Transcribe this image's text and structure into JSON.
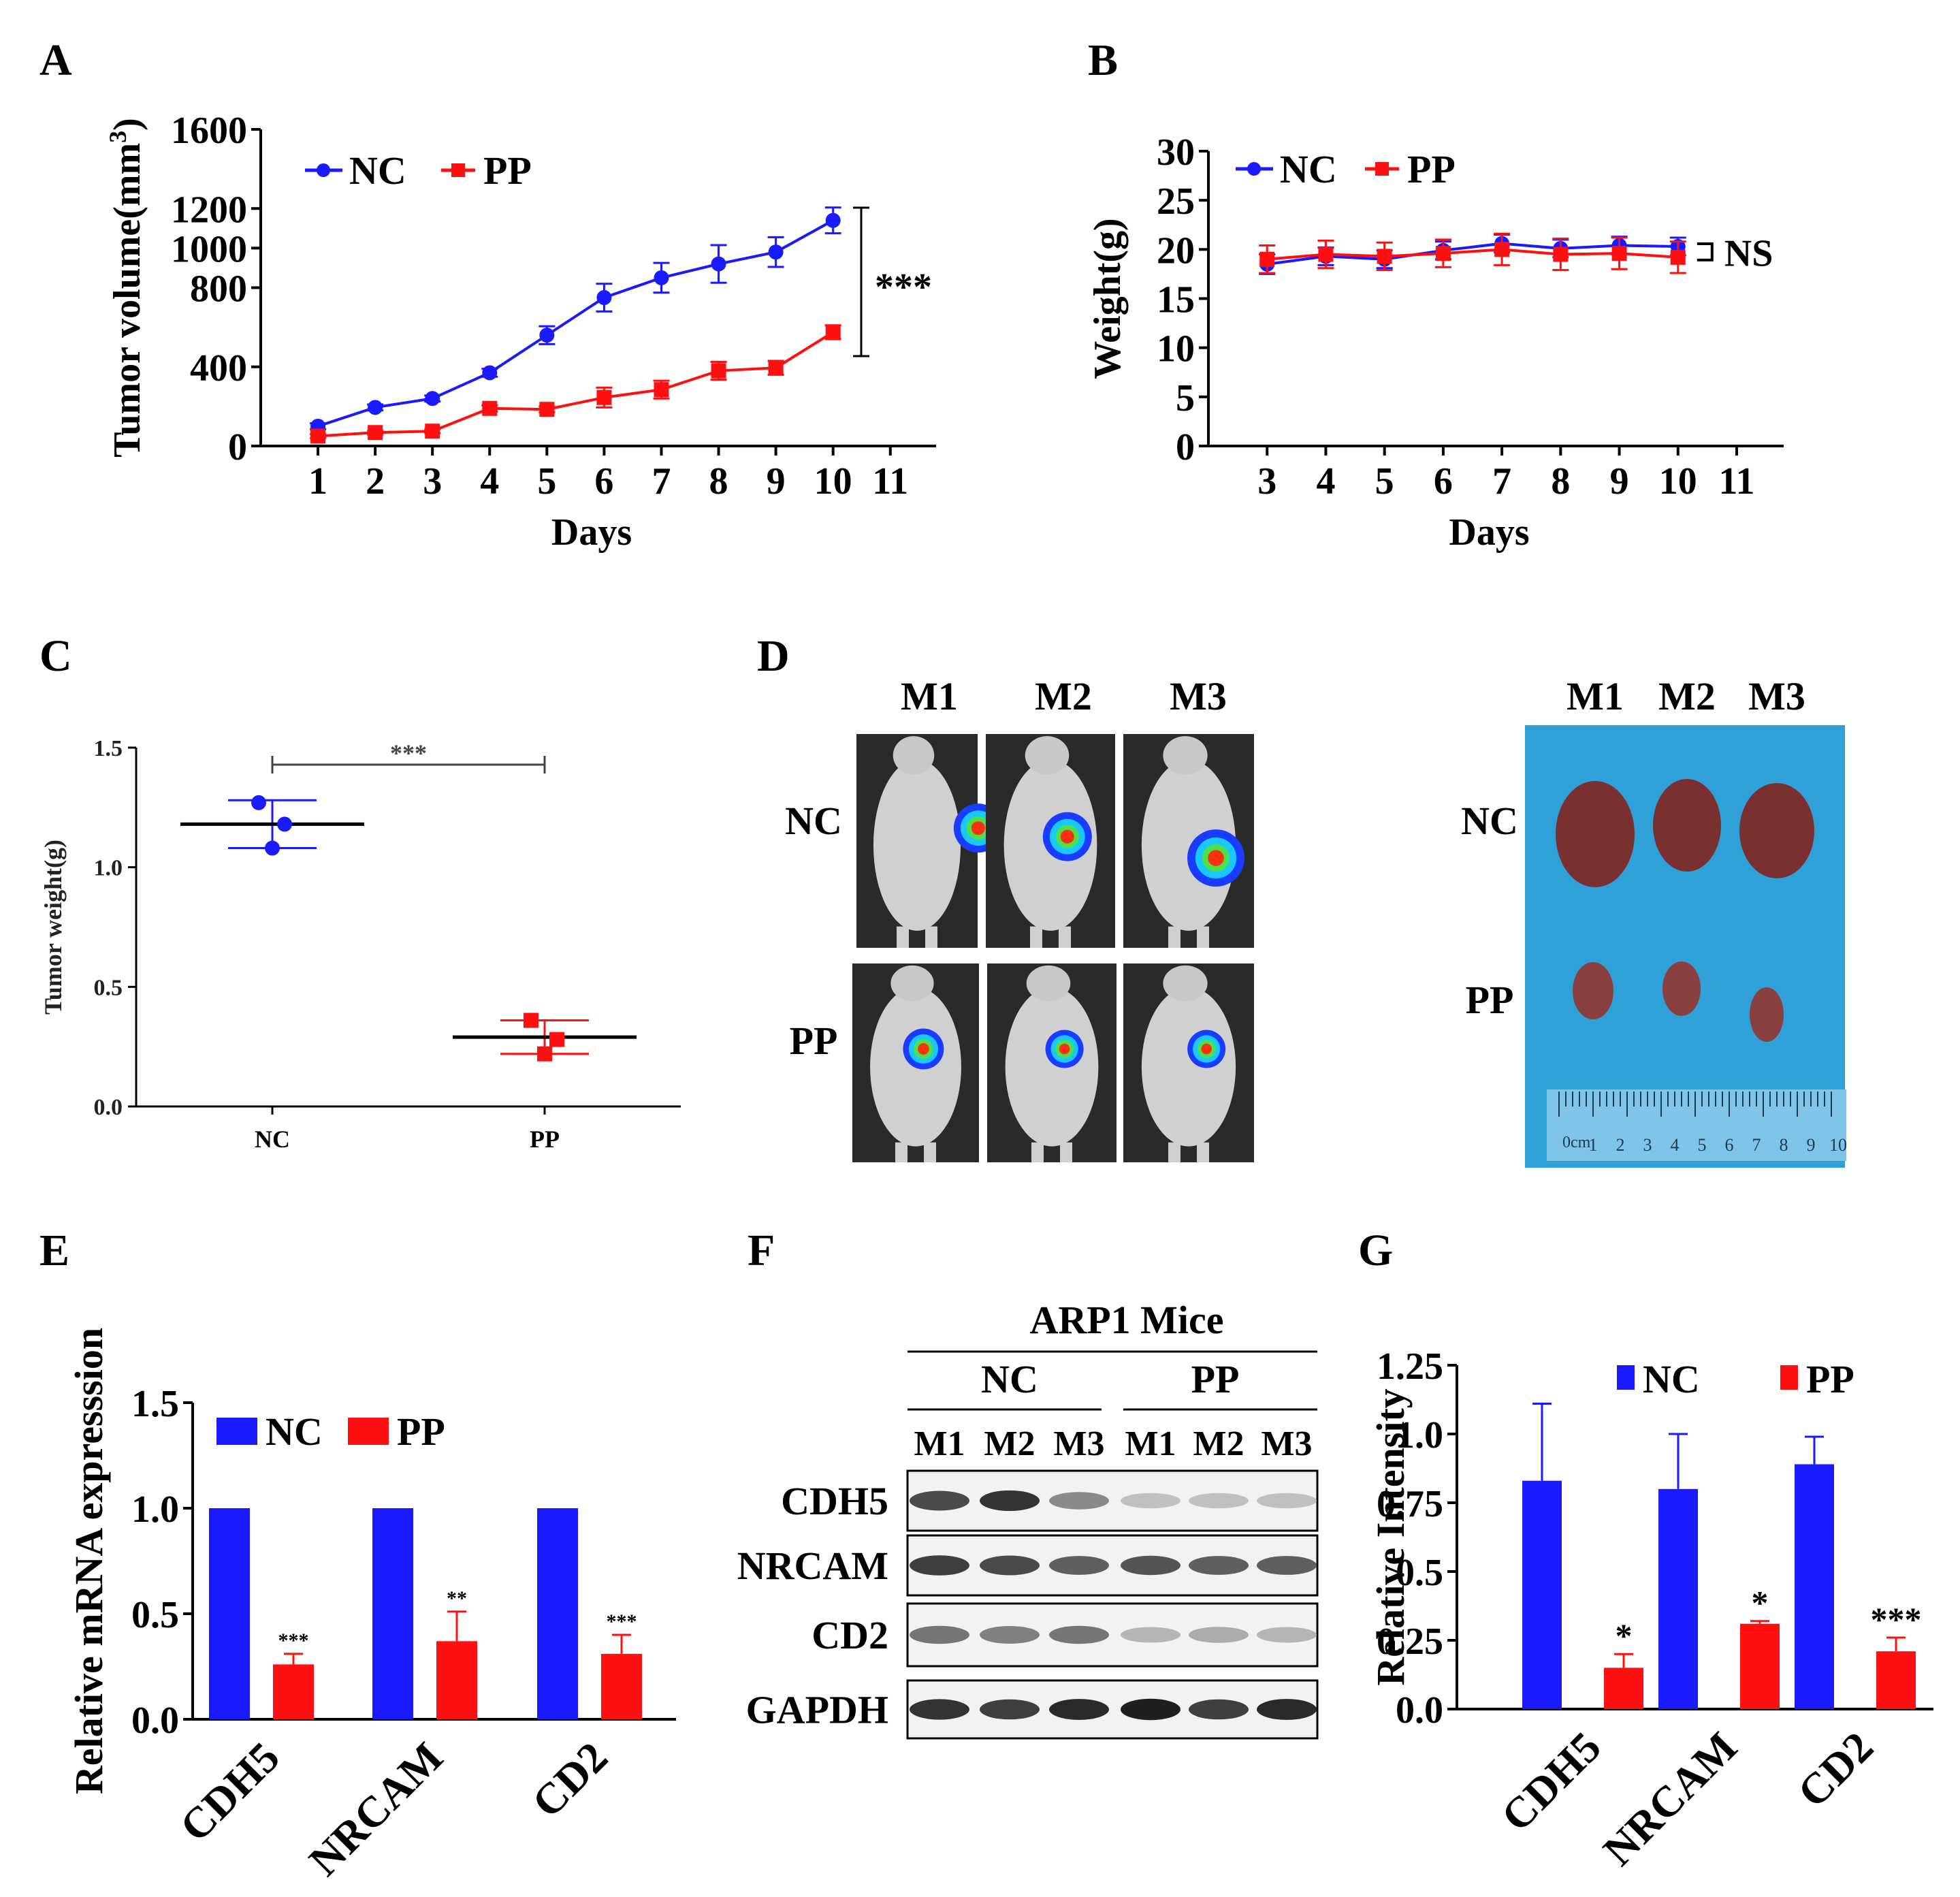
{
  "colors": {
    "nc": "#1a1aff",
    "pp": "#ff1010",
    "ink": "#000000",
    "grey": "#555555"
  },
  "panels": {
    "A": "A",
    "B": "B",
    "C": "C",
    "D": "D",
    "E": "E",
    "F": "F",
    "G": "G"
  },
  "chart_data": [
    {
      "id": "A",
      "type": "line",
      "xlabel": "Days",
      "ylabel": "Tumor volume(mm",
      "ylabel_sup": "3",
      "ylabel_end": ")",
      "xlim": [
        0,
        11.8
      ],
      "ylim": [
        0,
        1600
      ],
      "xticks": [
        1,
        2,
        3,
        4,
        5,
        6,
        7,
        8,
        9,
        10,
        11
      ],
      "yticks": [
        0,
        400,
        800,
        1000,
        1200,
        1600
      ],
      "x": [
        1,
        2,
        3,
        4,
        5,
        6,
        7,
        8,
        9,
        10
      ],
      "series": [
        {
          "name": "NC",
          "values": [
            100,
            195,
            240,
            370,
            560,
            750,
            850,
            920,
            980,
            1140
          ],
          "errors": [
            15,
            15,
            15,
            20,
            45,
            70,
            75,
            95,
            75,
            65
          ]
        },
        {
          "name": "PP",
          "values": [
            50,
            68,
            75,
            190,
            185,
            245,
            285,
            380,
            395,
            575
          ],
          "errors": [
            10,
            10,
            10,
            15,
            15,
            50,
            45,
            45,
            35,
            35
          ]
        }
      ],
      "annotation": "***"
    },
    {
      "id": "B",
      "type": "line",
      "xlabel": "Days",
      "ylabel": "Weight(g)",
      "xlim": [
        2,
        11.8
      ],
      "ylim": [
        0,
        30
      ],
      "xticks": [
        3,
        4,
        5,
        6,
        7,
        8,
        9,
        10,
        11
      ],
      "yticks": [
        0,
        5,
        10,
        15,
        20,
        25,
        30
      ],
      "x": [
        3,
        4,
        5,
        6,
        7,
        8,
        9,
        10
      ],
      "series": [
        {
          "name": "NC",
          "values": [
            18.5,
            19.3,
            19.0,
            19.9,
            20.6,
            20.1,
            20.4,
            20.3
          ],
          "errors": [
            1.0,
            0.9,
            0.9,
            0.9,
            0.9,
            0.9,
            0.9,
            0.9
          ]
        },
        {
          "name": "PP",
          "values": [
            19.0,
            19.5,
            19.3,
            19.6,
            20.0,
            19.5,
            19.6,
            19.2
          ],
          "errors": [
            1.4,
            1.4,
            1.4,
            1.4,
            1.6,
            1.6,
            1.6,
            1.6
          ]
        }
      ],
      "annotation": "NS"
    },
    {
      "id": "C",
      "type": "scatter",
      "ylabel": "Tumor weight(g)",
      "categories": [
        "NC",
        "PP"
      ],
      "ylim": [
        0,
        1.5
      ],
      "yticks": [
        "0.0",
        "0.5",
        "1.0",
        "1.5"
      ],
      "groups": [
        {
          "name": "NC",
          "points": [
            1.27,
            1.18,
            1.08
          ],
          "mean": 1.18,
          "sd": 0.1
        },
        {
          "name": "PP",
          "points": [
            0.36,
            0.28,
            0.22
          ],
          "mean": 0.29,
          "sd": 0.07
        }
      ],
      "annotation": "***"
    },
    {
      "id": "E",
      "type": "bar",
      "ylabel": "Relative mRNA expresssion",
      "categories": [
        "CDH5",
        "NRCAM",
        "CD2"
      ],
      "ylim": [
        0,
        1.5
      ],
      "yticks": [
        "0.0",
        "0.5",
        "1.0",
        "1.5"
      ],
      "series": [
        {
          "name": "NC",
          "values": [
            1.0,
            1.0,
            1.0
          ],
          "errors": [
            0,
            0,
            0
          ]
        },
        {
          "name": "PP",
          "values": [
            0.26,
            0.37,
            0.31
          ],
          "errors": [
            0.05,
            0.14,
            0.09
          ]
        }
      ],
      "significance": [
        "***",
        "**",
        "***"
      ]
    },
    {
      "id": "G",
      "type": "bar",
      "ylabel": "Relative Intensity",
      "categories": [
        "CDH5",
        "NRCAM",
        "CD2"
      ],
      "ylim": [
        0,
        1.25
      ],
      "yticks": [
        "0.0",
        "0.25",
        "0.5",
        "0.75",
        "1.0",
        "1.25"
      ],
      "series": [
        {
          "name": "NC",
          "values": [
            0.83,
            0.8,
            0.89
          ],
          "errors": [
            0.28,
            0.2,
            0.1
          ]
        },
        {
          "name": "PP",
          "values": [
            0.15,
            0.31,
            0.21
          ],
          "errors": [
            0.05,
            0.01,
            0.05
          ]
        }
      ],
      "significance": [
        "*",
        "*",
        "***"
      ]
    }
  ],
  "panel_d": {
    "columns": [
      "M1",
      "M2",
      "M3"
    ],
    "rows": [
      "NC",
      "PP"
    ],
    "ruler_label": "0cm",
    "ruler_numbers": [
      "1",
      "2",
      "3",
      "4",
      "5",
      "6",
      "7",
      "8",
      "9",
      "10"
    ]
  },
  "panel_f": {
    "title": "ARP1 Mice",
    "groups": [
      "NC",
      "PP"
    ],
    "lanes": [
      "M1",
      "M2",
      "M3",
      "M1",
      "M2",
      "M3"
    ],
    "proteins": [
      "CDH5",
      "NRCAM",
      "CD2",
      "GAPDH"
    ],
    "band_intensity": [
      [
        0.75,
        0.85,
        0.45,
        0.2,
        0.2,
        0.2
      ],
      [
        0.8,
        0.75,
        0.65,
        0.7,
        0.65,
        0.65
      ],
      [
        0.55,
        0.5,
        0.55,
        0.25,
        0.3,
        0.25
      ],
      [
        0.85,
        0.8,
        0.9,
        0.95,
        0.8,
        0.9
      ]
    ]
  }
}
